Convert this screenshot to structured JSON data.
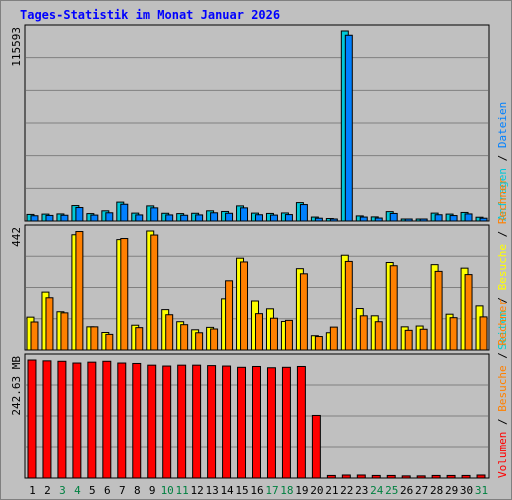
{
  "title": "Tages-Statistik im Monat Januar 2026",
  "colors": {
    "background": "#c0c0c0",
    "plot_background": "#c0c0c0",
    "grid": "#808080",
    "anfragen": "#00c8d8",
    "dateien": "#0080ff",
    "seiten": "#00d0d0",
    "besuche": "#ffff00",
    "rechner": "#ff8000",
    "volumen": "#ff0000",
    "title": "#0000ff",
    "weekday": "#000000",
    "weekend": "#008040"
  },
  "chart_data": [
    {
      "type": "bar",
      "name": "top",
      "ymax_label": "115593",
      "ylim": [
        0,
        115593
      ],
      "legend": [
        "Anfragen",
        "/",
        "Dateien"
      ],
      "series": [
        {
          "name": "Anfragen",
          "values": [
            4000,
            4200,
            4300,
            9400,
            4500,
            6200,
            11500,
            4800,
            9200,
            4700,
            4500,
            4700,
            6200,
            5800,
            9200,
            4800,
            4600,
            4900,
            11200,
            2400,
            1500,
            115593,
            3100,
            2500,
            5700,
            1100,
            1100,
            4800,
            4200,
            5200,
            2300
          ]
        },
        {
          "name": "Dateien",
          "values": [
            3200,
            3400,
            3500,
            8200,
            3600,
            5000,
            10200,
            3700,
            8000,
            3700,
            3500,
            3700,
            5000,
            4700,
            8000,
            3800,
            3600,
            3900,
            10000,
            1700,
            900,
            113000,
            2400,
            1800,
            4600,
            600,
            600,
            3800,
            3300,
            4300,
            1700
          ]
        }
      ]
    },
    {
      "type": "bar",
      "name": "middle",
      "ymax_label": "442",
      "ylim": [
        0,
        442
      ],
      "legend": [
        "Seiten",
        "/",
        "Besuche",
        "/",
        "Rechner"
      ],
      "series": [
        {
          "name": "Besuche",
          "values": [
            122,
            215,
            142,
            428,
            86,
            65,
            410,
            92,
            442,
            150,
            105,
            75,
            84,
            190,
            341,
            182,
            153,
            106,
            302,
            53,
            64,
            352,
            154,
            127,
            325,
            86,
            89,
            317,
            133,
            304,
            164
          ]
        },
        {
          "name": "Rechner",
          "values": [
            104,
            194,
            138,
            440,
            86,
            58,
            414,
            83,
            427,
            131,
            94,
            64,
            78,
            257,
            327,
            135,
            118,
            110,
            283,
            50,
            85,
            329,
            127,
            105,
            313,
            73,
            77,
            292,
            120,
            280,
            123
          ]
        }
      ]
    },
    {
      "type": "bar",
      "name": "bottom",
      "ymax_label": "242.63 MB",
      "ylim": [
        0,
        242.63
      ],
      "legend": [
        "Volumen",
        "/",
        "Besuche",
        "/",
        "Rechner"
      ],
      "series": [
        {
          "name": "Volumen",
          "values": [
            242.6,
            240.9,
            240.0,
            236.4,
            238.2,
            240.0,
            236.4,
            235.5,
            232.0,
            230.2,
            232.0,
            232.0,
            231.1,
            230.2,
            227.6,
            229.3,
            226.7,
            227.6,
            229.3,
            128.6,
            5.3,
            6.2,
            6.2,
            5.3,
            5.3,
            4.4,
            4.4,
            5.3,
            5.3,
            5.3,
            6.2
          ]
        }
      ]
    }
  ],
  "days": [
    "1",
    "2",
    "3",
    "4",
    "5",
    "6",
    "7",
    "8",
    "9",
    "10",
    "11",
    "12",
    "13",
    "14",
    "15",
    "16",
    "17",
    "18",
    "19",
    "20",
    "21",
    "22",
    "23",
    "24",
    "25",
    "26",
    "27",
    "28",
    "29",
    "30",
    "31"
  ],
  "weekend_days": [
    "3",
    "4",
    "10",
    "11",
    "17",
    "18",
    "24",
    "25",
    "31"
  ]
}
